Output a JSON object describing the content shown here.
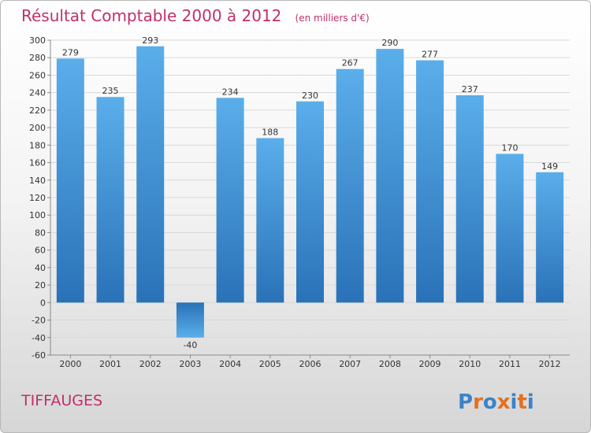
{
  "chart_data": {
    "type": "bar",
    "title": "Résultat Comptable 2000 à 2012",
    "subtitle": "(en milliers d'€)",
    "categories": [
      "2000",
      "2001",
      "2002",
      "2003",
      "2004",
      "2005",
      "2006",
      "2007",
      "2008",
      "2009",
      "2010",
      "2011",
      "2012"
    ],
    "values": [
      279,
      235,
      293,
      -40,
      234,
      188,
      230,
      267,
      290,
      277,
      237,
      170,
      149
    ],
    "ylim": [
      -60,
      300
    ],
    "yticks": [
      -60,
      -40,
      -20,
      0,
      20,
      40,
      60,
      80,
      100,
      120,
      140,
      160,
      180,
      200,
      220,
      240,
      260,
      280,
      300
    ],
    "grid": true,
    "xlabel": "",
    "ylabel": "",
    "bar_color": "#4a9ee0"
  },
  "footer": {
    "city": "TIFFAUGES",
    "logo_letters": [
      "P",
      "r",
      "o",
      "x",
      "i",
      "t",
      "i"
    ],
    "logo_colors": [
      "#3b83c8",
      "#e3701e",
      "#3b83c8",
      "#e3701e",
      "#3b83c8",
      "#e3701e",
      "#3b83c8"
    ]
  }
}
